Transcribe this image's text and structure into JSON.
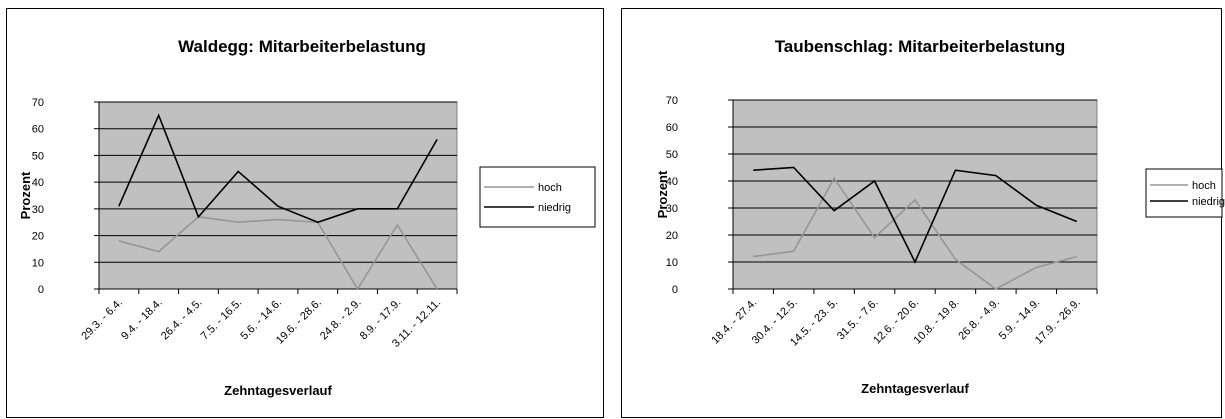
{
  "chart_data": [
    {
      "type": "line",
      "title": "Waldegg: Mitarbeiterbelastung",
      "xlabel": "Zehntagesverlauf",
      "ylabel": "Prozent",
      "ylim": [
        0,
        70
      ],
      "yticks": [
        0,
        10,
        20,
        30,
        40,
        50,
        60,
        70
      ],
      "grid": true,
      "plot_background": "#c0c0c0",
      "legend_position": "right",
      "categories": [
        "29.3. - 6.4.",
        "9.4. - 18.4.",
        "26.4. - 4.5.",
        "7.5. - 16.5.",
        "5.6. - 14.6.",
        "19.6. - 28.6.",
        "24.8. - 2.9.",
        "8.9. - 17.9.",
        "3.11. - 12.11."
      ],
      "series": [
        {
          "name": "hoch",
          "color": "#969696",
          "values": [
            18,
            14,
            27,
            25,
            26,
            25,
            0,
            24,
            0
          ]
        },
        {
          "name": "niedrig",
          "color": "#000000",
          "values": [
            31,
            65,
            27,
            44,
            31,
            25,
            30,
            30,
            56
          ]
        }
      ]
    },
    {
      "type": "line",
      "title": "Taubenschlag: Mitarbeiterbelastung",
      "xlabel": "Zehntagesverlauf",
      "ylabel": "Prozent",
      "ylim": [
        0,
        70
      ],
      "yticks": [
        0,
        10,
        20,
        30,
        40,
        50,
        60,
        70
      ],
      "grid": true,
      "plot_background": "#c0c0c0",
      "legend_position": "right",
      "categories": [
        "18.4. - 27.4.",
        "30.4. - 12.5.",
        "14.5. - 23. 5.",
        "31.5. - 7.6.",
        "12.6. - 20.6.",
        "10.8. - 19.8.",
        "26.8. - 4.9.",
        "5.9. - 14.9.",
        "17.9. - 26.9."
      ],
      "series": [
        {
          "name": "hoch",
          "color": "#969696",
          "values": [
            12,
            14,
            41,
            19,
            33,
            11,
            0,
            8,
            12
          ]
        },
        {
          "name": "niedrig",
          "color": "#000000",
          "values": [
            44,
            45,
            29,
            40,
            10,
            44,
            42,
            31,
            25
          ]
        }
      ]
    }
  ]
}
